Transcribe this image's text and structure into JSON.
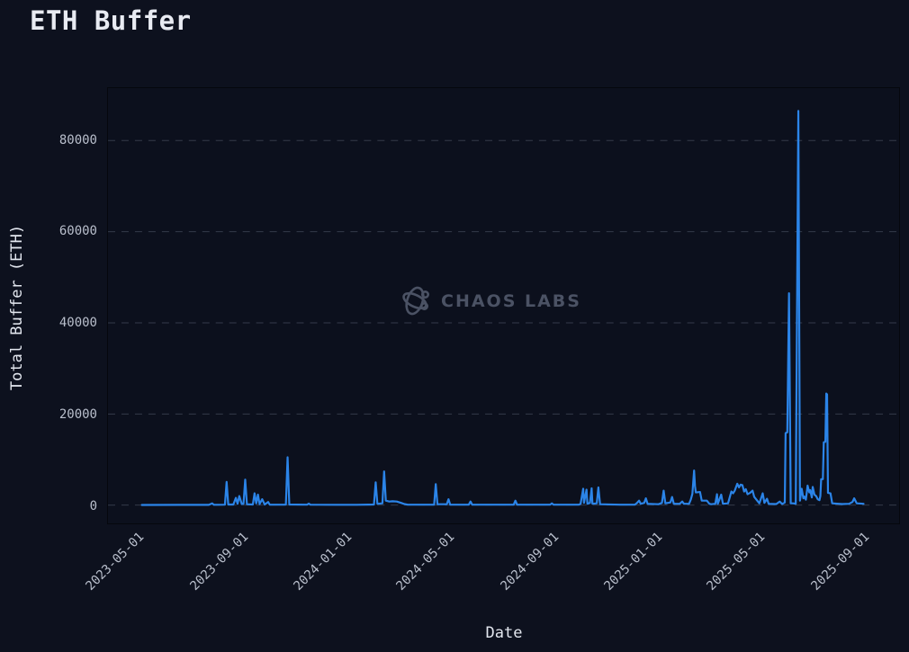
{
  "title": "ETH Buffer",
  "watermark": {
    "text": "CHAOS LABS",
    "logo_icon": "chaos-labs-atom-icon"
  },
  "colors": {
    "page_bg": "#0d111e",
    "plot_bg": "#0c101d",
    "plot_border": "#05070d",
    "grid": "#424959",
    "line": "#2b84e8",
    "title_text": "#e8ebf2",
    "tick_text": "#b9bfcc",
    "axis_title_text": "#e3e7ef",
    "watermark_text": "#4b5264"
  },
  "chart_data": {
    "type": "line",
    "title": "ETH Buffer",
    "xlabel": "Date",
    "ylabel": "Total Buffer (ETH)",
    "legend": "none",
    "grid": "horizontal-dashed",
    "x_ticks": [
      "2023-05-01",
      "2023-09-01",
      "2024-01-01",
      "2024-05-01",
      "2024-09-01",
      "2025-01-01",
      "2025-05-01",
      "2025-09-01"
    ],
    "y_ticks": [
      0,
      20000,
      40000,
      60000,
      80000
    ],
    "x_range": [
      "2023-03-27",
      "2025-10-16"
    ],
    "y_range": [
      -4000,
      91500
    ],
    "series": [
      {
        "name": "Total Buffer (ETH)",
        "points": [
          [
            "2023-05-06",
            50
          ],
          [
            "2023-06-20",
            60
          ],
          [
            "2023-07-24",
            60
          ],
          [
            "2023-07-28",
            400
          ],
          [
            "2023-07-30",
            80
          ],
          [
            "2023-08-12",
            100
          ],
          [
            "2023-08-14",
            5100
          ],
          [
            "2023-08-16",
            150
          ],
          [
            "2023-08-22",
            150
          ],
          [
            "2023-08-25",
            1600
          ],
          [
            "2023-08-27",
            300
          ],
          [
            "2023-08-29",
            2000
          ],
          [
            "2023-09-01",
            250
          ],
          [
            "2023-09-03",
            300
          ],
          [
            "2023-09-05",
            5600
          ],
          [
            "2023-09-07",
            200
          ],
          [
            "2023-09-14",
            150
          ],
          [
            "2023-09-16",
            2600
          ],
          [
            "2023-09-18",
            400
          ],
          [
            "2023-09-20",
            2300
          ],
          [
            "2023-09-22",
            250
          ],
          [
            "2023-09-25",
            1300
          ],
          [
            "2023-09-28",
            150
          ],
          [
            "2023-10-02",
            700
          ],
          [
            "2023-10-04",
            100
          ],
          [
            "2023-10-21",
            100
          ],
          [
            "2023-10-23",
            150
          ],
          [
            "2023-10-25",
            10500
          ],
          [
            "2023-10-27",
            150
          ],
          [
            "2023-11-17",
            100
          ],
          [
            "2023-11-19",
            350
          ],
          [
            "2023-11-21",
            100
          ],
          [
            "2023-12-20",
            80
          ],
          [
            "2024-01-15",
            80
          ],
          [
            "2024-02-04",
            150
          ],
          [
            "2024-02-06",
            5000
          ],
          [
            "2024-02-08",
            300
          ],
          [
            "2024-02-14",
            400
          ],
          [
            "2024-02-16",
            7400
          ],
          [
            "2024-02-18",
            1000
          ],
          [
            "2024-02-22",
            800
          ],
          [
            "2024-02-26",
            850
          ],
          [
            "2024-03-02",
            800
          ],
          [
            "2024-03-07",
            500
          ],
          [
            "2024-03-11",
            250
          ],
          [
            "2024-03-15",
            100
          ],
          [
            "2024-04-15",
            100
          ],
          [
            "2024-04-17",
            4600
          ],
          [
            "2024-04-19",
            200
          ],
          [
            "2024-04-30",
            200
          ],
          [
            "2024-05-02",
            1300
          ],
          [
            "2024-05-04",
            100
          ],
          [
            "2024-05-26",
            100
          ],
          [
            "2024-05-28",
            800
          ],
          [
            "2024-05-30",
            100
          ],
          [
            "2024-07-18",
            100
          ],
          [
            "2024-07-20",
            1000
          ],
          [
            "2024-07-22",
            100
          ],
          [
            "2024-08-30",
            100
          ],
          [
            "2024-09-01",
            400
          ],
          [
            "2024-09-03",
            100
          ],
          [
            "2024-10-03",
            100
          ],
          [
            "2024-10-05",
            300
          ],
          [
            "2024-10-08",
            3600
          ],
          [
            "2024-10-09",
            500
          ],
          [
            "2024-10-12",
            3400
          ],
          [
            "2024-10-13",
            300
          ],
          [
            "2024-10-16",
            500
          ],
          [
            "2024-10-18",
            3700
          ],
          [
            "2024-10-19",
            300
          ],
          [
            "2024-10-24",
            400
          ],
          [
            "2024-10-26",
            3900
          ],
          [
            "2024-10-28",
            200
          ],
          [
            "2024-11-20",
            100
          ],
          [
            "2024-12-08",
            100
          ],
          [
            "2024-12-10",
            400
          ],
          [
            "2024-12-13",
            1000
          ],
          [
            "2024-12-15",
            300
          ],
          [
            "2024-12-19",
            500
          ],
          [
            "2024-12-21",
            1500
          ],
          [
            "2024-12-23",
            300
          ],
          [
            "2025-01-05",
            200
          ],
          [
            "2025-01-09",
            500
          ],
          [
            "2025-01-11",
            3200
          ],
          [
            "2025-01-13",
            400
          ],
          [
            "2025-01-19",
            600
          ],
          [
            "2025-01-21",
            1800
          ],
          [
            "2025-01-23",
            300
          ],
          [
            "2025-01-30",
            300
          ],
          [
            "2025-02-02",
            800
          ],
          [
            "2025-02-04",
            300
          ],
          [
            "2025-02-10",
            300
          ],
          [
            "2025-02-12",
            1200
          ],
          [
            "2025-02-14",
            2500
          ],
          [
            "2025-02-16",
            7600
          ],
          [
            "2025-02-17",
            4200
          ],
          [
            "2025-02-18",
            2800
          ],
          [
            "2025-02-23",
            2900
          ],
          [
            "2025-02-25",
            1000
          ],
          [
            "2025-03-03",
            1000
          ],
          [
            "2025-03-06",
            300
          ],
          [
            "2025-03-08",
            200
          ],
          [
            "2025-03-13",
            300
          ],
          [
            "2025-03-15",
            2400
          ],
          [
            "2025-03-16",
            300
          ],
          [
            "2025-03-20",
            2300
          ],
          [
            "2025-03-22",
            300
          ],
          [
            "2025-03-28",
            400
          ],
          [
            "2025-04-01",
            3000
          ],
          [
            "2025-04-03",
            2600
          ],
          [
            "2025-04-05",
            3200
          ],
          [
            "2025-04-08",
            4700
          ],
          [
            "2025-04-10",
            3900
          ],
          [
            "2025-04-12",
            4500
          ],
          [
            "2025-04-14",
            4400
          ],
          [
            "2025-04-16",
            3000
          ],
          [
            "2025-04-18",
            3500
          ],
          [
            "2025-04-20",
            2400
          ],
          [
            "2025-04-23",
            2700
          ],
          [
            "2025-04-26",
            3200
          ],
          [
            "2025-04-28",
            1800
          ],
          [
            "2025-05-01",
            1100
          ],
          [
            "2025-05-04",
            400
          ],
          [
            "2025-05-08",
            2600
          ],
          [
            "2025-05-10",
            500
          ],
          [
            "2025-05-13",
            1400
          ],
          [
            "2025-05-15",
            300
          ],
          [
            "2025-05-24",
            250
          ],
          [
            "2025-05-28",
            800
          ],
          [
            "2025-05-31",
            250
          ],
          [
            "2025-06-03",
            600
          ],
          [
            "2025-06-04",
            15800
          ],
          [
            "2025-06-06",
            16000
          ],
          [
            "2025-06-08",
            46500
          ],
          [
            "2025-06-10",
            400
          ],
          [
            "2025-06-13",
            400
          ],
          [
            "2025-06-16",
            300
          ],
          [
            "2025-06-19",
            86500
          ],
          [
            "2025-06-21",
            1000
          ],
          [
            "2025-06-23",
            3600
          ],
          [
            "2025-06-25",
            1500
          ],
          [
            "2025-06-26",
            1900
          ],
          [
            "2025-06-28",
            1200
          ],
          [
            "2025-06-30",
            4300
          ],
          [
            "2025-07-02",
            2800
          ],
          [
            "2025-07-03",
            3300
          ],
          [
            "2025-07-05",
            1700
          ],
          [
            "2025-07-06",
            4000
          ],
          [
            "2025-07-08",
            2300
          ],
          [
            "2025-07-10",
            2000
          ],
          [
            "2025-07-12",
            1300
          ],
          [
            "2025-07-14",
            1100
          ],
          [
            "2025-07-15",
            2000
          ],
          [
            "2025-07-16",
            5700
          ],
          [
            "2025-07-18",
            5700
          ],
          [
            "2025-07-19",
            13800
          ],
          [
            "2025-07-21",
            13900
          ],
          [
            "2025-07-22",
            24500
          ],
          [
            "2025-07-23",
            24300
          ],
          [
            "2025-07-24",
            2700
          ],
          [
            "2025-07-27",
            2600
          ],
          [
            "2025-07-29",
            400
          ],
          [
            "2025-08-10",
            250
          ],
          [
            "2025-08-18",
            300
          ],
          [
            "2025-08-22",
            700
          ],
          [
            "2025-08-24",
            1500
          ],
          [
            "2025-08-27",
            400
          ],
          [
            "2025-09-04",
            300
          ]
        ]
      }
    ]
  }
}
